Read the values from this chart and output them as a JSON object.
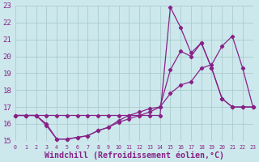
{
  "background_color": "#cce8ec",
  "grid_color": "#aacccc",
  "line_color": "#882288",
  "xlabel": "Windchill (Refroidissement éolien,°C)",
  "xlim": [
    0,
    23
  ],
  "ylim": [
    15,
    23
  ],
  "yticks": [
    15,
    16,
    17,
    18,
    19,
    20,
    21,
    22,
    23
  ],
  "xticks": [
    0,
    1,
    2,
    3,
    4,
    5,
    6,
    7,
    8,
    9,
    10,
    11,
    12,
    13,
    14,
    15,
    16,
    17,
    18,
    19,
    20,
    21,
    22,
    23
  ],
  "s1_x": [
    0,
    1,
    2,
    3,
    4,
    5,
    6,
    7,
    8,
    9,
    10,
    11,
    12,
    13,
    14,
    15,
    16,
    17,
    18,
    19,
    20,
    21,
    22,
    23
  ],
  "s1_y": [
    16.5,
    16.5,
    16.5,
    16.0,
    15.1,
    15.1,
    15.2,
    15.3,
    15.6,
    15.8,
    16.1,
    16.3,
    16.5,
    16.7,
    17.0,
    17.8,
    18.3,
    18.5,
    19.3,
    19.5,
    20.6,
    21.2,
    19.3,
    17.0
  ],
  "s2_x": [
    0,
    1,
    2,
    3,
    4,
    5,
    6,
    7,
    8,
    9,
    10,
    11,
    12,
    13,
    14,
    15,
    16,
    17,
    18,
    19,
    20,
    21,
    22,
    23
  ],
  "s2_y": [
    16.5,
    16.5,
    16.5,
    15.9,
    15.1,
    15.1,
    15.2,
    15.3,
    15.6,
    15.8,
    16.2,
    16.5,
    16.7,
    16.9,
    17.0,
    19.2,
    20.3,
    20.0,
    20.8,
    19.3,
    17.5,
    17.0,
    17.0,
    17.0
  ],
  "s3_x": [
    0,
    1,
    2,
    3,
    4,
    5,
    6,
    7,
    8,
    9,
    10,
    11,
    12,
    13,
    14,
    15,
    16,
    17,
    18,
    19,
    20,
    21,
    22,
    23
  ],
  "s3_y": [
    16.5,
    16.5,
    16.5,
    16.5,
    16.5,
    16.5,
    16.5,
    16.5,
    16.5,
    16.5,
    16.5,
    16.5,
    16.5,
    16.5,
    16.5,
    22.9,
    21.7,
    20.2,
    20.8,
    19.3,
    17.5,
    17.0,
    17.0,
    17.0
  ]
}
